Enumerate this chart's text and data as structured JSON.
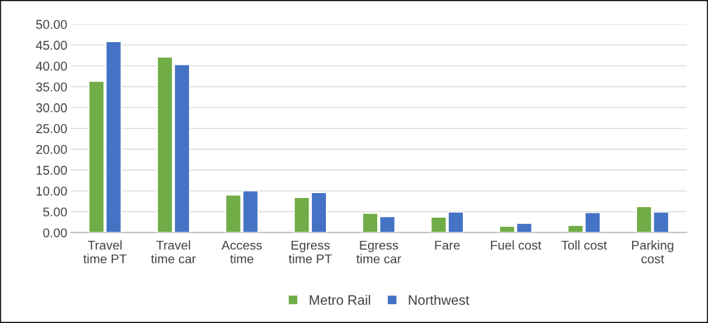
{
  "chart_data": {
    "type": "bar",
    "categories": [
      "Travel\ntime PT",
      "Travel\ntime car",
      "Access\ntime",
      "Egress\ntime PT",
      "Egress\ntime car",
      "Fare",
      "Fuel cost",
      "Toll cost",
      "Parking\ncost"
    ],
    "series": [
      {
        "name": "Metro Rail",
        "color": "#70ad47",
        "values": [
          36.3,
          42.1,
          9.0,
          8.4,
          4.6,
          3.7,
          1.5,
          1.7,
          6.2
        ]
      },
      {
        "name": "Northwest",
        "color": "#4472c4",
        "values": [
          45.8,
          40.3,
          10.0,
          9.6,
          3.8,
          4.9,
          2.2,
          4.8,
          4.9
        ]
      }
    ],
    "ylim": [
      0,
      50
    ],
    "yticks": [
      {
        "value": 0,
        "label": "0.00"
      },
      {
        "value": 5,
        "label": "5.00"
      },
      {
        "value": 10,
        "label": "10.00"
      },
      {
        "value": 15,
        "label": "15.00"
      },
      {
        "value": 20,
        "label": "20.00"
      },
      {
        "value": 25,
        "label": "25.00"
      },
      {
        "value": 30,
        "label": "30.00"
      },
      {
        "value": 35,
        "label": "35.00"
      },
      {
        "value": 40,
        "label": "40.00"
      },
      {
        "value": 45,
        "label": "45.00"
      },
      {
        "value": 50,
        "label": "50.00"
      }
    ],
    "grid": "y",
    "legend": "bottom"
  }
}
